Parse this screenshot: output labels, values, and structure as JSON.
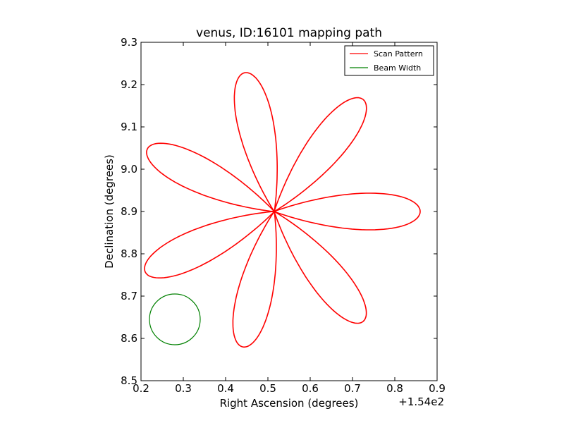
{
  "chart_data": {
    "type": "line",
    "title": "venus, ID:16101 mapping path",
    "xlabel": "Right Ascension (degrees)",
    "ylabel": "Declination (degrees)",
    "x_offset_label": "+1.54e2",
    "xlim": [
      0.2,
      0.9
    ],
    "ylim": [
      8.5,
      9.3
    ],
    "x_ticks": [
      "0.2",
      "0.3",
      "0.4",
      "0.5",
      "0.6",
      "0.7",
      "0.8",
      "0.9"
    ],
    "y_ticks": [
      "8.5",
      "8.6",
      "8.7",
      "8.8",
      "8.9",
      "9.0",
      "9.1",
      "9.2",
      "9.3"
    ],
    "grid": false,
    "legend_position": "top-right",
    "series": [
      {
        "name": "Scan Pattern",
        "color": "#ff0000",
        "kind": "rosette",
        "center": [
          0.515,
          8.9
        ],
        "petal_tips": [
          [
            0.86,
            8.9
          ],
          [
            0.725,
            9.165
          ],
          [
            0.445,
            9.228
          ],
          [
            0.215,
            9.048
          ],
          [
            0.21,
            8.757
          ],
          [
            0.44,
            8.58
          ],
          [
            0.725,
            8.64
          ]
        ]
      },
      {
        "name": "Beam Width",
        "color": "#008000",
        "kind": "circle",
        "center": [
          0.28,
          8.645
        ],
        "radius": 0.06
      }
    ]
  }
}
